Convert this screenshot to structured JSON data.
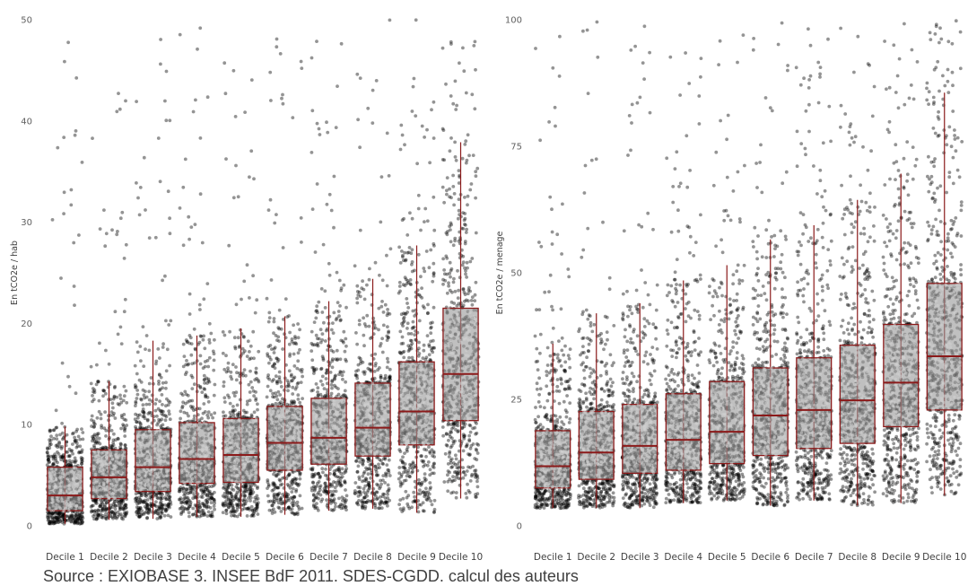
{
  "colors": {
    "point": "#000000",
    "box_fill": "#9a9a9a",
    "box_stroke": "#8b1a1a",
    "whisker": "#8b1a1a",
    "median": "#8b1a1a",
    "text": "#404040"
  },
  "source": "Source : EXIOBASE 3. INSEE BdF 2011. SDES-CGDD. calcul des auteurs",
  "chart_data": [
    {
      "type": "box",
      "overlay": "jittered-scatter",
      "title": "",
      "xlabel": "",
      "ylabel": "En tCO2e / hab",
      "ylim": [
        0,
        50
      ],
      "yticks": [
        0,
        10,
        20,
        30,
        40,
        50
      ],
      "grid": false,
      "categories": [
        "Decile 1",
        "Decile 2",
        "Decile 3",
        "Decile 4",
        "Decile 5",
        "Decile 6",
        "Decile 7",
        "Decile 8",
        "Decile 9",
        "Decile 10"
      ],
      "boxes": [
        {
          "q1": 1.5,
          "median": 3.0,
          "q3": 5.8,
          "whisker_low": 0.2,
          "whisker_high": 9.8
        },
        {
          "q1": 2.7,
          "median": 4.8,
          "q3": 7.5,
          "whisker_low": 0.6,
          "whisker_high": 14.3
        },
        {
          "q1": 3.4,
          "median": 5.8,
          "q3": 9.5,
          "whisker_low": 0.7,
          "whisker_high": 18.3
        },
        {
          "q1": 4.2,
          "median": 6.6,
          "q3": 10.2,
          "whisker_low": 0.9,
          "whisker_high": 18.8
        },
        {
          "q1": 4.3,
          "median": 7.0,
          "q3": 10.6,
          "whisker_low": 0.9,
          "whisker_high": 19.5
        },
        {
          "q1": 5.5,
          "median": 8.2,
          "q3": 11.8,
          "whisker_low": 1.1,
          "whisker_high": 20.7
        },
        {
          "q1": 6.1,
          "median": 8.7,
          "q3": 12.6,
          "whisker_low": 1.5,
          "whisker_high": 22.2
        },
        {
          "q1": 6.9,
          "median": 9.7,
          "q3": 14.1,
          "whisker_low": 1.7,
          "whisker_high": 24.4
        },
        {
          "q1": 8.0,
          "median": 11.3,
          "q3": 16.2,
          "whisker_low": 1.3,
          "whisker_high": 27.7
        },
        {
          "q1": 10.4,
          "median": 15.0,
          "q3": 21.5,
          "whisker_low": 2.7,
          "whisker_high": 37.9
        }
      ]
    },
    {
      "type": "box",
      "overlay": "jittered-scatter",
      "title": "",
      "xlabel": "",
      "ylabel": "En tCO2e / menage",
      "ylim": [
        0,
        100
      ],
      "yticks": [
        0,
        25,
        50,
        75,
        100
      ],
      "grid": false,
      "categories": [
        "Decile 1",
        "Decile 2",
        "Decile 3",
        "Decile 4",
        "Decile 5",
        "Decile 6",
        "Decile 7",
        "Decile 8",
        "Decile 9",
        "Decile 10"
      ],
      "boxes": [
        {
          "q1": 7.5,
          "median": 11.8,
          "q3": 18.8,
          "whisker_low": 3.5,
          "whisker_high": 36.0
        },
        {
          "q1": 9.2,
          "median": 14.5,
          "q3": 22.6,
          "whisker_low": 3.5,
          "whisker_high": 42.0
        },
        {
          "q1": 10.4,
          "median": 15.8,
          "q3": 24.0,
          "whisker_low": 3.5,
          "whisker_high": 44.0
        },
        {
          "q1": 11.0,
          "median": 17.0,
          "q3": 26.1,
          "whisker_low": 4.5,
          "whisker_high": 48.5
        },
        {
          "q1": 12.3,
          "median": 18.6,
          "q3": 28.5,
          "whisker_low": 5.0,
          "whisker_high": 51.5
        },
        {
          "q1": 13.9,
          "median": 21.8,
          "q3": 31.2,
          "whisker_low": 4.0,
          "whisker_high": 56.6
        },
        {
          "q1": 15.3,
          "median": 22.9,
          "q3": 33.2,
          "whisker_low": 5.0,
          "whisker_high": 59.4
        },
        {
          "q1": 16.3,
          "median": 24.8,
          "q3": 35.7,
          "whisker_low": 4.0,
          "whisker_high": 64.4
        },
        {
          "q1": 19.6,
          "median": 28.3,
          "q3": 39.8,
          "whisker_low": 4.5,
          "whisker_high": 69.6
        },
        {
          "q1": 22.9,
          "median": 33.5,
          "q3": 47.9,
          "whisker_low": 6.0,
          "whisker_high": 85.6
        }
      ]
    }
  ]
}
